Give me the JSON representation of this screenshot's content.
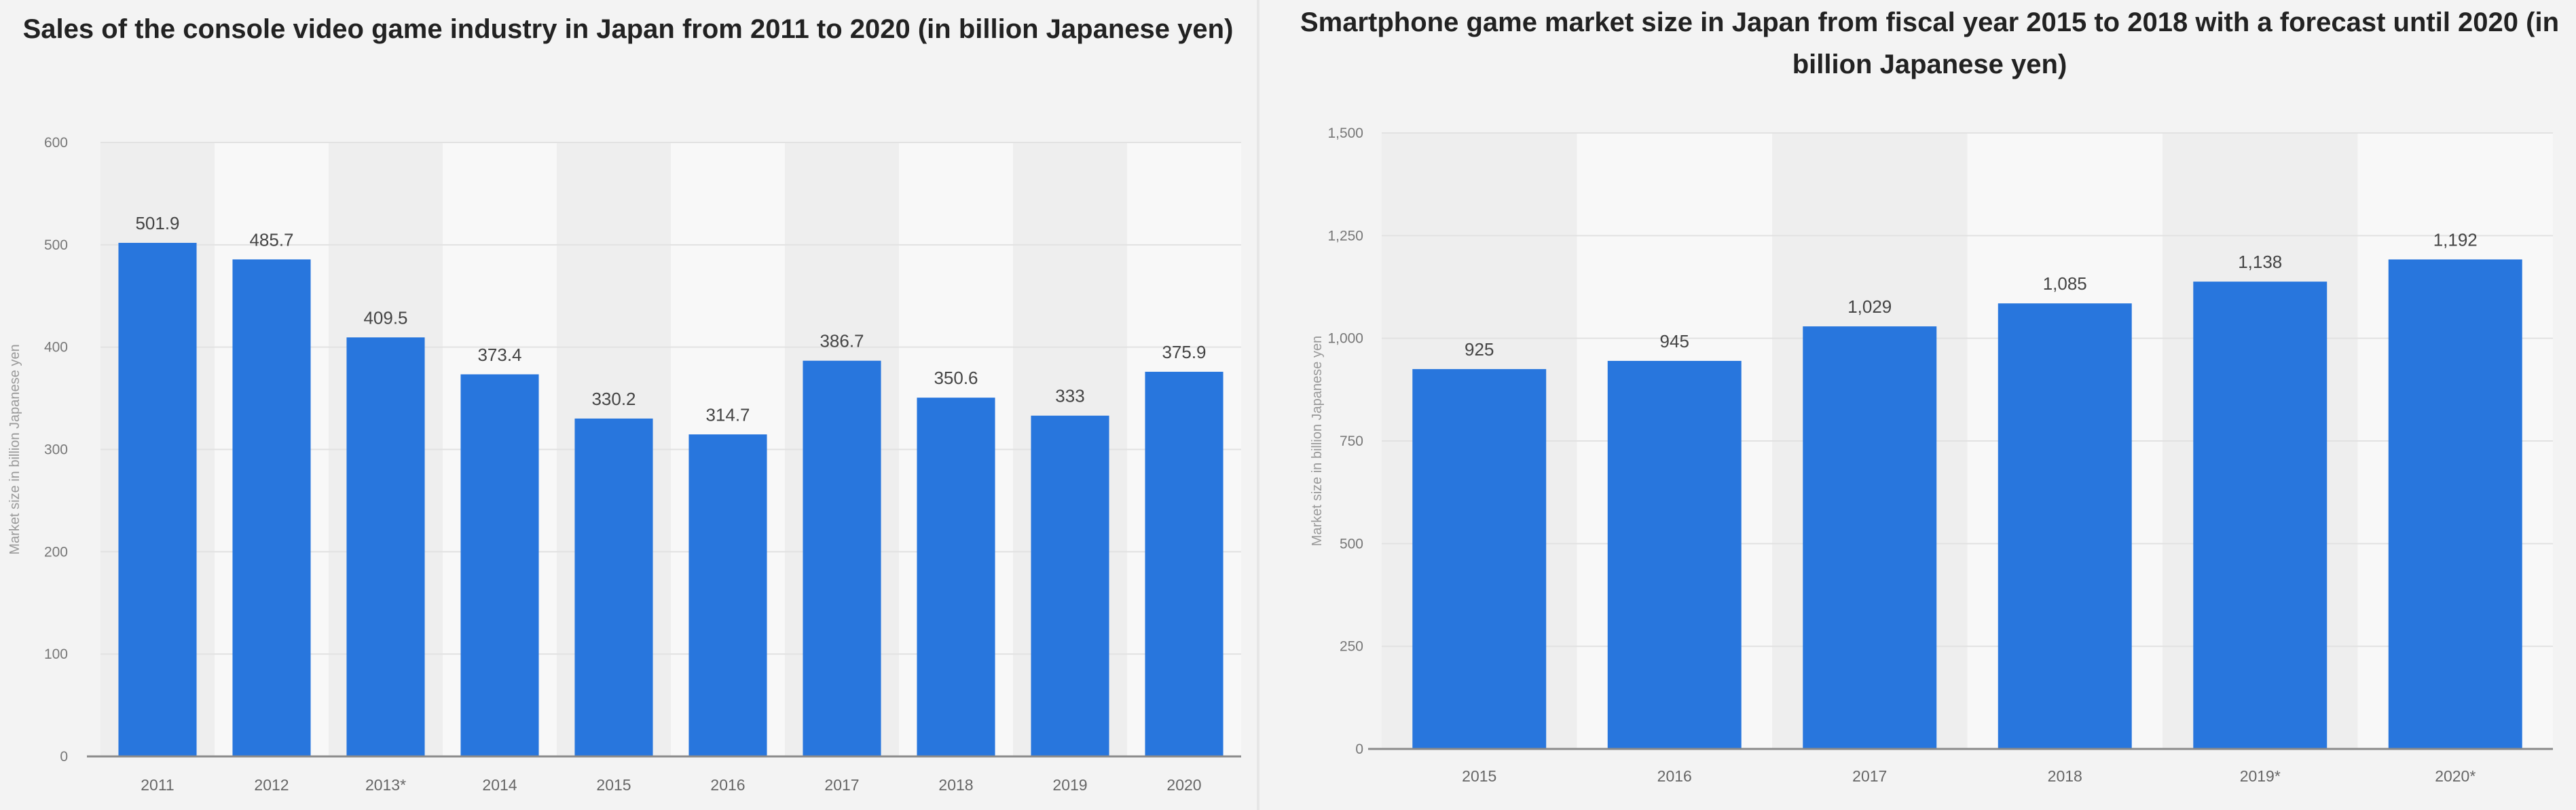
{
  "chart_data": [
    {
      "type": "bar",
      "title": "Sales of the console video game industry in Japan from 2011 to 2020 (in billion Japanese yen)",
      "ylabel": "Market size in billion Japanese yen",
      "xlabel": "",
      "categories": [
        "2011",
        "2012",
        "2013*",
        "2014",
        "2015",
        "2016",
        "2017",
        "2018",
        "2019",
        "2020"
      ],
      "values": [
        501.9,
        485.7,
        409.5,
        373.4,
        330.2,
        314.7,
        386.7,
        350.6,
        333,
        375.9
      ],
      "value_labels": [
        "501.9",
        "485.7",
        "409.5",
        "373.4",
        "330.2",
        "314.7",
        "386.7",
        "350.6",
        "333",
        "375.9"
      ],
      "ylim": [
        0,
        600
      ],
      "yticks": [
        0,
        100,
        200,
        300,
        400,
        500,
        600
      ],
      "ytick_labels": [
        "0",
        "100",
        "200",
        "300",
        "400",
        "500",
        "600"
      ],
      "grid": true,
      "bar_color": "#2876dd"
    },
    {
      "type": "bar",
      "title": "Smartphone game market size in Japan from fiscal year 2015 to 2018 with a forecast until 2020 (in billion Japanese yen)",
      "ylabel": "Market size in billion Japanese yen",
      "xlabel": "",
      "categories": [
        "2015",
        "2016",
        "2017",
        "2018",
        "2019*",
        "2020*"
      ],
      "values": [
        925,
        945,
        1029,
        1085,
        1138,
        1192
      ],
      "value_labels": [
        "925",
        "945",
        "1,029",
        "1,085",
        "1,138",
        "1,192"
      ],
      "ylim": [
        0,
        1500
      ],
      "yticks": [
        0,
        250,
        500,
        750,
        1000,
        1250,
        1500
      ],
      "ytick_labels": [
        "0",
        "250",
        "500",
        "750",
        "1,000",
        "1,250",
        "1,500"
      ],
      "grid": true,
      "bar_color": "#2876dd"
    }
  ]
}
